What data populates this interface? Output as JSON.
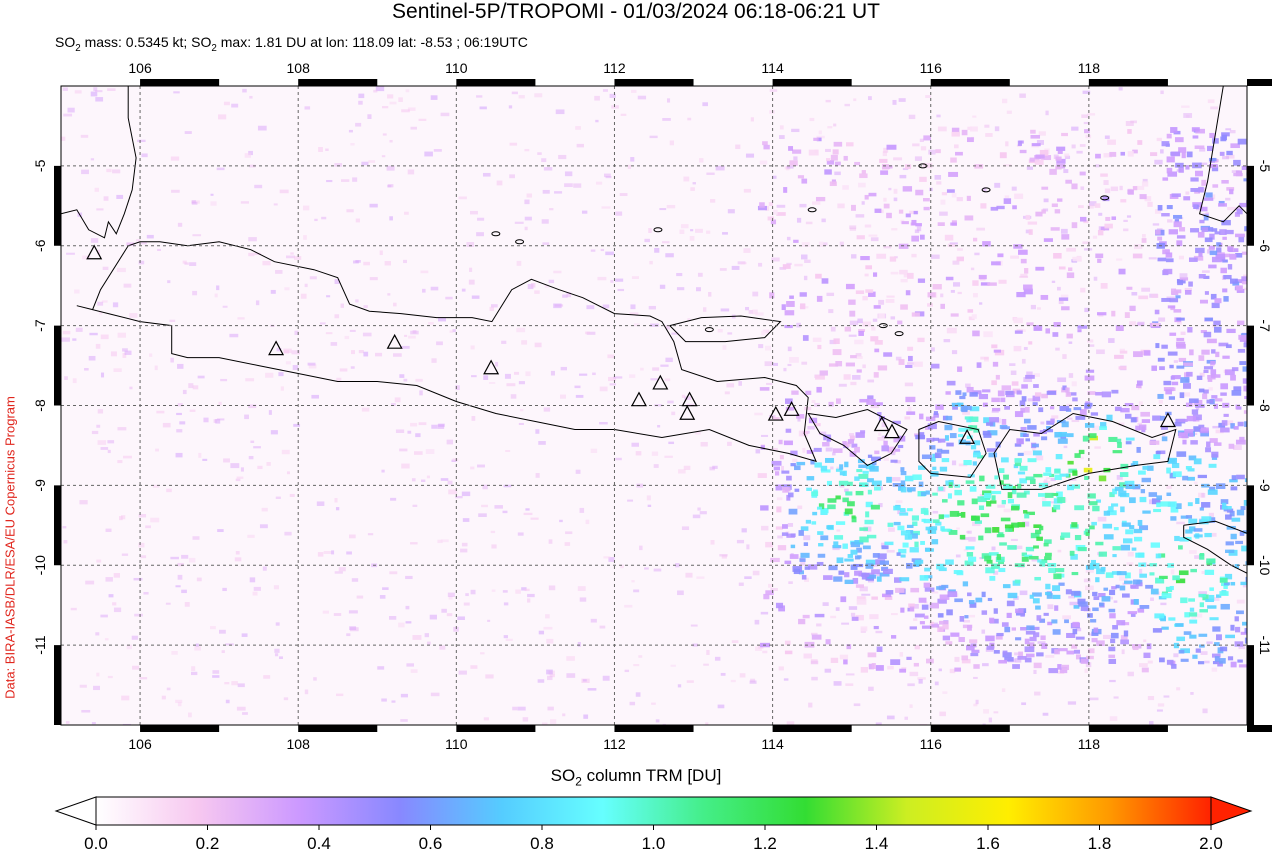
{
  "title": "Sentinel-5P/TROPOMI - 01/03/2024 06:18-06:21 UT",
  "subtitle": {
    "mass_label": "SO",
    "mass_text": " mass: 0.5345 kt; SO",
    "max_text": " max: 1.81 DU at lon: 118.09 lat: -8.53 ; 06:19UTC"
  },
  "credit": "Data: BIRA-IASB/DLR/ESA/EU Copernicus Program",
  "colorbar": {
    "label_prefix": "SO",
    "label_suffix": " column TRM [DU]",
    "ticks": [
      "0.0",
      "0.2",
      "0.4",
      "0.6",
      "0.8",
      "1.0",
      "1.2",
      "1.4",
      "1.6",
      "1.8",
      "2.0"
    ],
    "stops": [
      "#ffffff",
      "#f7c8f0",
      "#cc99ff",
      "#8888ff",
      "#55ccff",
      "#66ffff",
      "#44ee88",
      "#33dd33",
      "#ccee22",
      "#ffee00",
      "#ff9900",
      "#ff2200"
    ]
  },
  "map": {
    "lon_range": [
      105,
      120
    ],
    "lat_range": [
      -12,
      -4
    ],
    "lon_ticks": [
      "106",
      "108",
      "110",
      "112",
      "114",
      "116",
      "118"
    ],
    "lat_ticks": [
      "-5",
      "-6",
      "-7",
      "-8",
      "-9",
      "-10",
      "-11"
    ],
    "volcano_marker": "triangle",
    "so2_max": {
      "lon": 118.09,
      "lat": -8.53,
      "du": 1.81
    }
  }
}
